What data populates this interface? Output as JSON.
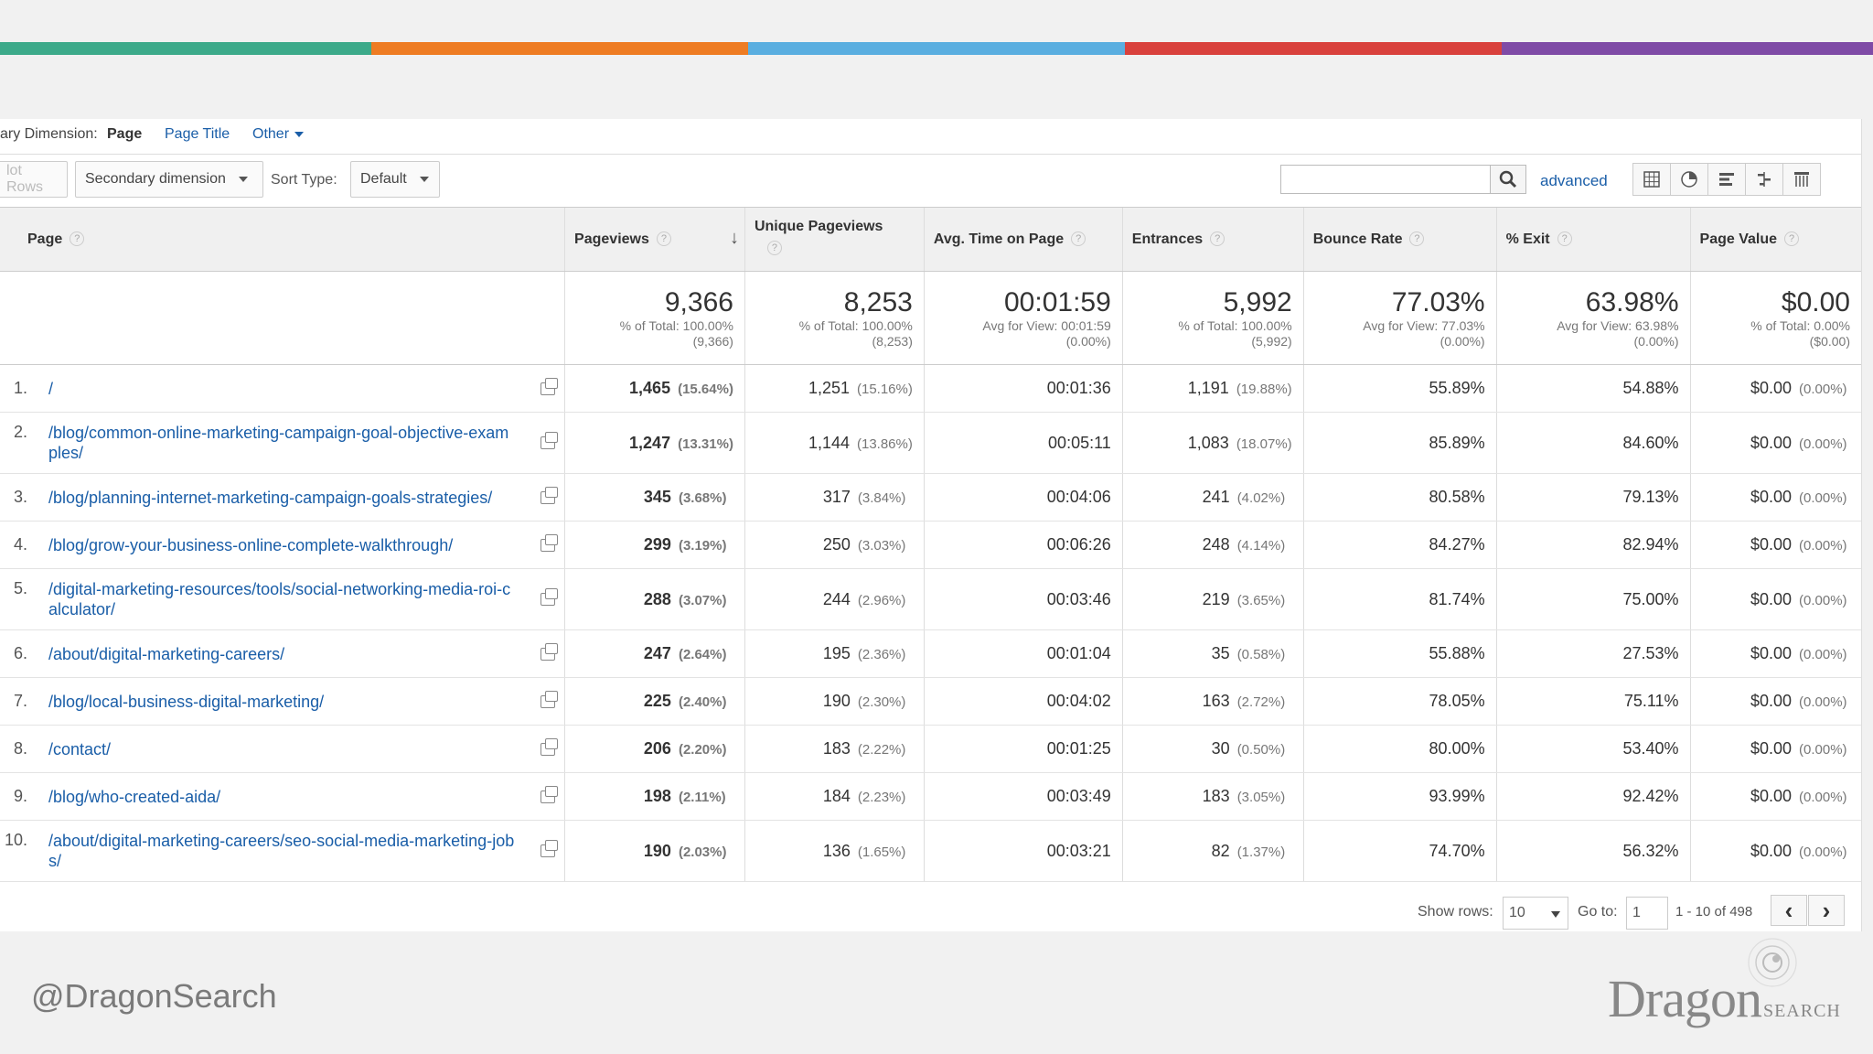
{
  "colors": {
    "bar": [
      "#3daa8a",
      "#ee7c23",
      "#5aaee0",
      "#d9413d",
      "#7f4ba6"
    ],
    "link": "#1a5ea8"
  },
  "primary_dimension": {
    "label": "ary Dimension:",
    "options": [
      {
        "label": "Page",
        "active": true
      },
      {
        "label": "Page Title",
        "active": false
      },
      {
        "label": "Other",
        "active": false
      }
    ]
  },
  "toolbar": {
    "plot_rows": "lot Rows",
    "secondary_dimension": "Secondary dimension",
    "sort_type_label": "Sort Type:",
    "sort_type_value": "Default",
    "search_value": "",
    "advanced": "advanced",
    "view_icons": [
      "table-view-icon",
      "pie-view-icon",
      "bar-view-icon",
      "comparison-view-icon",
      "pivot-view-icon"
    ]
  },
  "columns": [
    {
      "label": "Page"
    },
    {
      "label": "Pageviews"
    },
    {
      "label": "Unique Pageviews"
    },
    {
      "label": "Avg. Time on Page"
    },
    {
      "label": "Entrances"
    },
    {
      "label": "Bounce Rate"
    },
    {
      "label": "% Exit"
    },
    {
      "label": "Page Value"
    }
  ],
  "totals": [
    {
      "value": "9,366",
      "sub1": "% of Total: 100.00%",
      "sub2": "(9,366)"
    },
    {
      "value": "8,253",
      "sub1": "% of Total: 100.00%",
      "sub2": "(8,253)"
    },
    {
      "value": "00:01:59",
      "sub1": "Avg for View: 00:01:59",
      "sub2": "(0.00%)"
    },
    {
      "value": "5,992",
      "sub1": "% of Total: 100.00%",
      "sub2": "(5,992)"
    },
    {
      "value": "77.03%",
      "sub1": "Avg for View: 77.03%",
      "sub2": "(0.00%)"
    },
    {
      "value": "63.98%",
      "sub1": "Avg for View: 63.98%",
      "sub2": "(0.00%)"
    },
    {
      "value": "$0.00",
      "sub1": "% of Total: 0.00%",
      "sub2": "($0.00)"
    }
  ],
  "rows": [
    {
      "n": "1.",
      "page": "/",
      "pv": "1,465",
      "pvp": "(15.64%)",
      "upv": "1,251",
      "upvp": "(15.16%)",
      "time": "00:01:36",
      "ent": "1,191",
      "entp": "(19.88%)",
      "bounce": "55.89%",
      "exit": "54.88%",
      "val": "$0.00",
      "valp": "(0.00%)"
    },
    {
      "n": "2.",
      "page": "/blog/common-online-marketing-campaign-goal-objective-examples/",
      "pv": "1,247",
      "pvp": "(13.31%)",
      "upv": "1,144",
      "upvp": "(13.86%)",
      "time": "00:05:11",
      "ent": "1,083",
      "entp": "(18.07%)",
      "bounce": "85.89%",
      "exit": "84.60%",
      "val": "$0.00",
      "valp": "(0.00%)"
    },
    {
      "n": "3.",
      "page": "/blog/planning-internet-marketing-campaign-goals-strategies/",
      "pv": "345",
      "pvp": "(3.68%)",
      "upv": "317",
      "upvp": "(3.84%)",
      "time": "00:04:06",
      "ent": "241",
      "entp": "(4.02%)",
      "bounce": "80.58%",
      "exit": "79.13%",
      "val": "$0.00",
      "valp": "(0.00%)"
    },
    {
      "n": "4.",
      "page": "/blog/grow-your-business-online-complete-walkthrough/",
      "pv": "299",
      "pvp": "(3.19%)",
      "upv": "250",
      "upvp": "(3.03%)",
      "time": "00:06:26",
      "ent": "248",
      "entp": "(4.14%)",
      "bounce": "84.27%",
      "exit": "82.94%",
      "val": "$0.00",
      "valp": "(0.00%)"
    },
    {
      "n": "5.",
      "page": "/digital-marketing-resources/tools/social-networking-media-roi-calculator/",
      "pv": "288",
      "pvp": "(3.07%)",
      "upv": "244",
      "upvp": "(2.96%)",
      "time": "00:03:46",
      "ent": "219",
      "entp": "(3.65%)",
      "bounce": "81.74%",
      "exit": "75.00%",
      "val": "$0.00",
      "valp": "(0.00%)"
    },
    {
      "n": "6.",
      "page": "/about/digital-marketing-careers/",
      "pv": "247",
      "pvp": "(2.64%)",
      "upv": "195",
      "upvp": "(2.36%)",
      "time": "00:01:04",
      "ent": "35",
      "entp": "(0.58%)",
      "bounce": "55.88%",
      "exit": "27.53%",
      "val": "$0.00",
      "valp": "(0.00%)"
    },
    {
      "n": "7.",
      "page": "/blog/local-business-digital-marketing/",
      "pv": "225",
      "pvp": "(2.40%)",
      "upv": "190",
      "upvp": "(2.30%)",
      "time": "00:04:02",
      "ent": "163",
      "entp": "(2.72%)",
      "bounce": "78.05%",
      "exit": "75.11%",
      "val": "$0.00",
      "valp": "(0.00%)"
    },
    {
      "n": "8.",
      "page": "/contact/",
      "pv": "206",
      "pvp": "(2.20%)",
      "upv": "183",
      "upvp": "(2.22%)",
      "time": "00:01:25",
      "ent": "30",
      "entp": "(0.50%)",
      "bounce": "80.00%",
      "exit": "53.40%",
      "val": "$0.00",
      "valp": "(0.00%)"
    },
    {
      "n": "9.",
      "page": "/blog/who-created-aida/",
      "pv": "198",
      "pvp": "(2.11%)",
      "upv": "184",
      "upvp": "(2.23%)",
      "time": "00:03:49",
      "ent": "183",
      "entp": "(3.05%)",
      "bounce": "93.99%",
      "exit": "92.42%",
      "val": "$0.00",
      "valp": "(0.00%)"
    },
    {
      "n": "10.",
      "page": "/about/digital-marketing-careers/seo-social-media-marketing-jobs/",
      "pv": "190",
      "pvp": "(2.03%)",
      "upv": "136",
      "upvp": "(1.65%)",
      "time": "00:03:21",
      "ent": "82",
      "entp": "(1.37%)",
      "bounce": "74.70%",
      "exit": "56.32%",
      "val": "$0.00",
      "valp": "(0.00%)"
    }
  ],
  "footer": {
    "show_rows_label": "Show rows:",
    "show_rows_value": "10",
    "goto_label": "Go to:",
    "goto_value": "1",
    "range": "1 - 10 of 498",
    "prev": "‹",
    "next": "›"
  },
  "branding": {
    "handle": "@DragonSearch",
    "logo_main": "Dragon",
    "logo_sub": "SEARCH"
  }
}
